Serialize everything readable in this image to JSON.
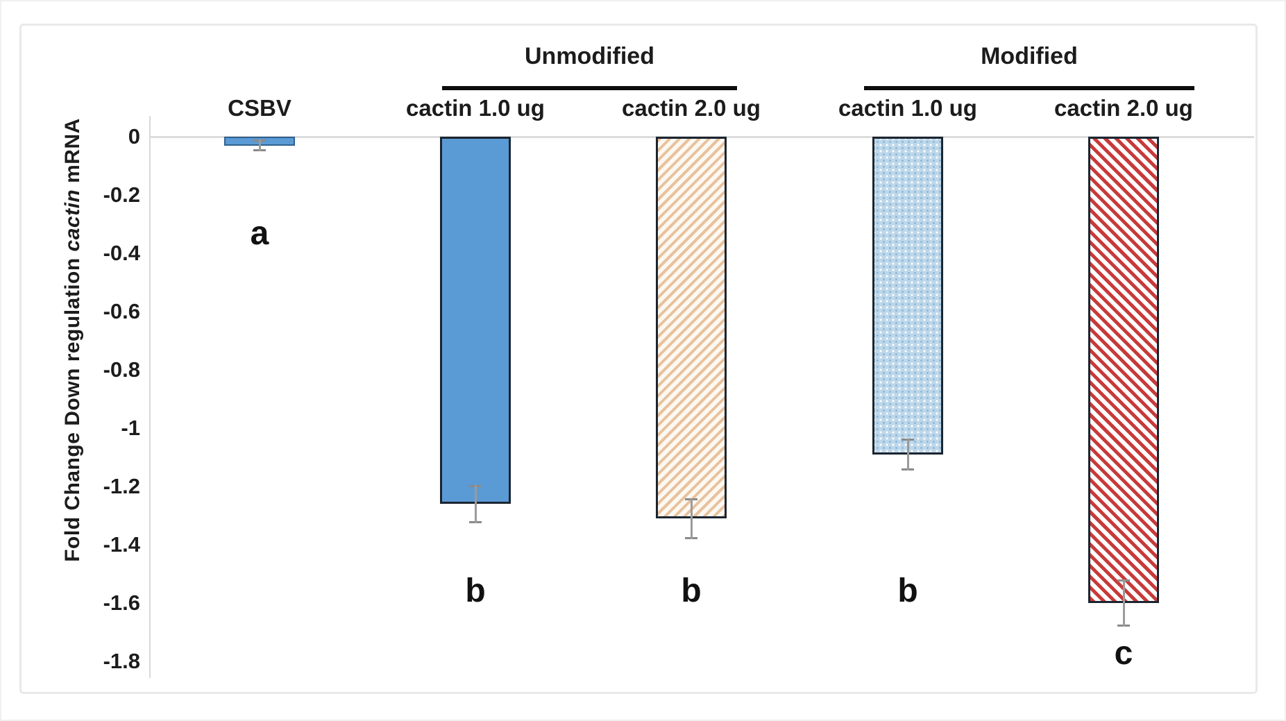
{
  "figure": {
    "kind": "bar chart with error bars and significance letters"
  },
  "colors": {
    "solid_blue": "#5b9bd5",
    "tan_stripe": "#e7c29e",
    "tan_bg": "#fdf8f1",
    "dot_blue_bg": "#bdd7ea",
    "dot_blue_dot": "#8fb8d8",
    "red_stripe": "#c83a3a",
    "stripe_bg": "#ffffff",
    "bar_border": "#1b2530",
    "error_bar": "#9b9b9b",
    "error_cap": "#8a8a8a",
    "zero_gridline": "#dcdcdc",
    "text": "#1c1c1c"
  },
  "chart_data": {
    "type": "bar",
    "title": "",
    "xlabel": "",
    "ylabel": "Fold Change Down regulation cactin mRNA",
    "ylabel_rich": {
      "prefix": "Fold Change Down regulation ",
      "italic": "cactin",
      "suffix": " mRNA"
    },
    "ylim": [
      -1.8,
      0
    ],
    "ytick_labels": [
      "0",
      "-0.2",
      "-0.4",
      "-0.6",
      "-0.8",
      "-1",
      "-1.2",
      "-1.4",
      "-1.6",
      "-1.8"
    ],
    "ytick_values": [
      0,
      -0.2,
      -0.4,
      -0.6,
      -0.8,
      -1,
      -1.2,
      -1.4,
      -1.6,
      -1.8
    ],
    "grid": "zero-baseline-only",
    "legend": "none",
    "categories": [
      "CSBV",
      "cactin 1.0 ug",
      "cactin 2.0 ug",
      "cactin 1.0 ug",
      "cactin 2.0 ug"
    ],
    "values": [
      -0.03,
      -1.26,
      -1.31,
      -1.09,
      -1.6
    ],
    "errors": [
      0.02,
      0.065,
      0.07,
      0.055,
      0.08
    ],
    "significance_letters": [
      "a",
      "b",
      "b",
      "b",
      "c"
    ],
    "bar_styles": [
      "solid-blue",
      "solid-blue",
      "tan-hatch",
      "blue-dots",
      "red-hatch"
    ],
    "group_headers": [
      {
        "label": "Unmodified",
        "bar_indexes": [
          1,
          2
        ]
      },
      {
        "label": "Modified",
        "bar_indexes": [
          3,
          4
        ]
      }
    ]
  }
}
